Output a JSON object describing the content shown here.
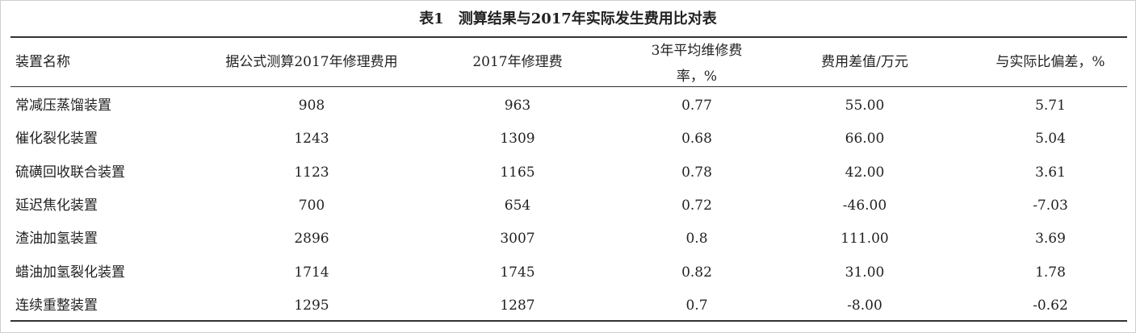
{
  "table": {
    "title": "表1　测算结果与2017年实际发生费用比对表",
    "header": [
      "装置名称",
      "据公式测算2017年修理费用",
      "2017年修理费",
      "3年平均维修费率，%",
      "费用差值/万元",
      "与实际比偏差，%"
    ],
    "rows": [
      [
        "常减压蒸馏装置",
        "908",
        "963",
        "0.77",
        "55.00",
        "5.71"
      ],
      [
        "催化裂化装置",
        "1243",
        "1309",
        "0.68",
        "66.00",
        "5.04"
      ],
      [
        "硫磺回收联合装置",
        "1123",
        "1165",
        "0.78",
        "42.00",
        "3.61"
      ],
      [
        "延迟焦化装置",
        "700",
        "654",
        "0.72",
        "-46.00",
        "-7.03"
      ],
      [
        "渣油加氢装置",
        "2896",
        "3007",
        "0.8",
        "111.00",
        "3.69"
      ],
      [
        "蜡油加氢裂化装置",
        "1714",
        "1745",
        "0.82",
        "31.00",
        "1.78"
      ],
      [
        "连续重整装置",
        "1295",
        "1287",
        "0.7",
        "-8.00",
        "-0.62"
      ]
    ]
  }
}
